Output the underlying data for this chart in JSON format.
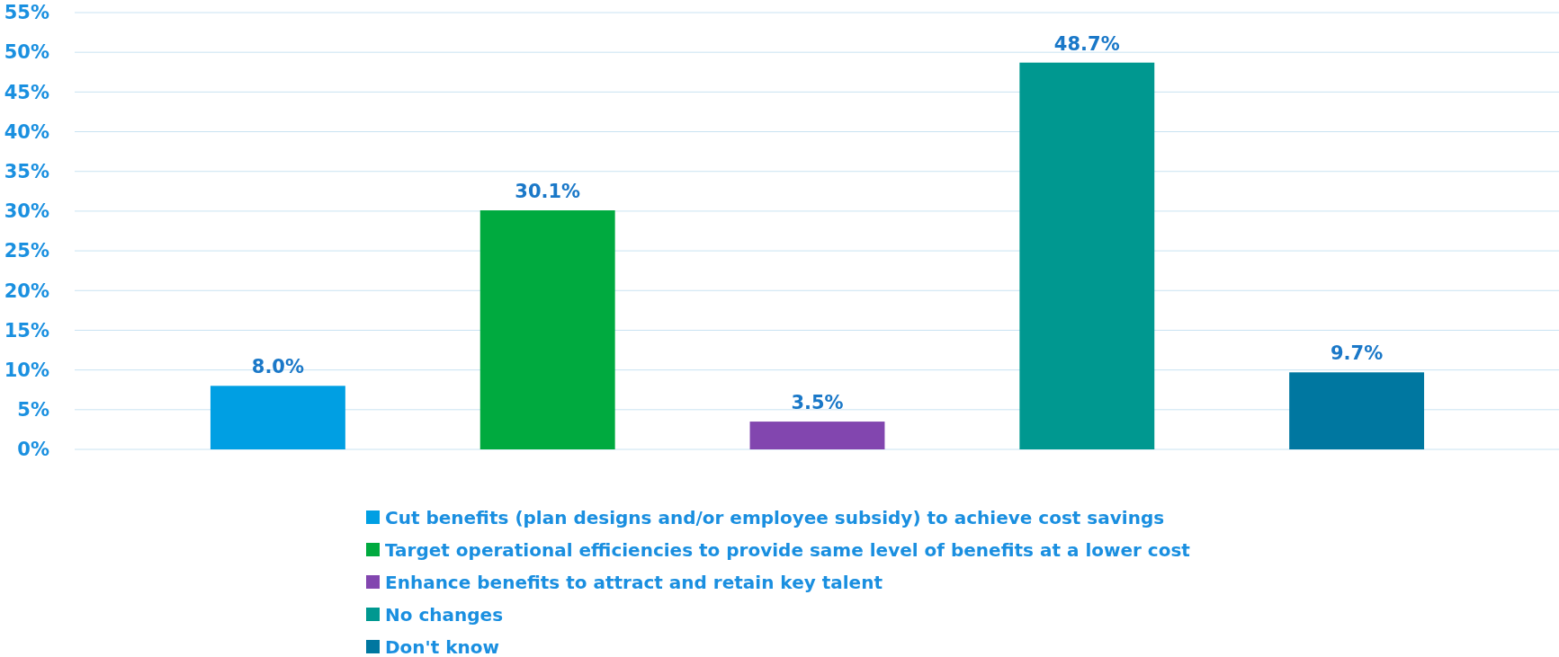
{
  "chart_data": {
    "type": "bar",
    "categories": [
      null,
      null,
      null,
      null,
      null
    ],
    "stacked": true,
    "grid": "y",
    "legend": "bottom",
    "ylim": [
      0,
      55
    ],
    "yticks": [
      {
        "value": 0,
        "label": "0%"
      },
      {
        "value": 5,
        "label": "5%"
      },
      {
        "value": 10,
        "label": "10%"
      },
      {
        "value": 15,
        "label": "15%"
      },
      {
        "value": 20,
        "label": "20%"
      },
      {
        "value": 25,
        "label": "25%"
      },
      {
        "value": 30,
        "label": "30%"
      },
      {
        "value": 35,
        "label": "35%"
      },
      {
        "value": 40,
        "label": "40%"
      },
      {
        "value": 45,
        "label": "45%"
      },
      {
        "value": 50,
        "label": "50%"
      },
      {
        "value": 55,
        "label": "55%"
      }
    ],
    "series": [
      {
        "name": "Cut benefits (plan designs and/or employee subsidy) to achieve cost savings",
        "color": "#009fe3",
        "values": [
          8.0,
          null,
          null,
          null,
          null
        ],
        "value_labels": [
          "8.0%",
          null,
          null,
          null,
          null
        ]
      },
      {
        "name": "Target operational efficiencies to provide same level of benefits at a lower cost",
        "color": "#00aa3f",
        "values": [
          null,
          30.1,
          null,
          null,
          null
        ],
        "value_labels": [
          null,
          "30.1%",
          null,
          null,
          null
        ]
      },
      {
        "name": "Enhance benefits to attract and retain key talent",
        "color": "#8246af",
        "values": [
          null,
          null,
          3.5,
          null,
          null
        ],
        "value_labels": [
          null,
          null,
          "3.5%",
          null,
          null
        ]
      },
      {
        "name": "No changes",
        "color": "#009890",
        "values": [
          null,
          null,
          null,
          48.7,
          null
        ],
        "value_labels": [
          null,
          null,
          null,
          "48.7%",
          null
        ]
      },
      {
        "name": "Don't know",
        "color": "#0077a0",
        "values": [
          null,
          null,
          null,
          null,
          9.7
        ],
        "value_labels": [
          null,
          null,
          null,
          null,
          "9.7%"
        ]
      }
    ]
  }
}
